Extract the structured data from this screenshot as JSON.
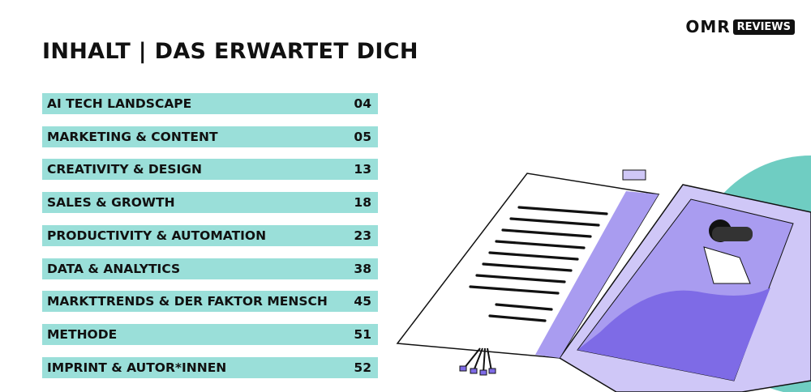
{
  "header": {
    "title": "INHALT | DAS ERWARTET DICH"
  },
  "logo": {
    "brand": "OMR",
    "label": "REVIEWS"
  },
  "toc": {
    "rows": [
      {
        "label": "AI TECH LANDSCAPE",
        "page": "04"
      },
      {
        "label": "MARKETING & CONTENT",
        "page": "05"
      },
      {
        "label": "CREATIVITY & DESIGN",
        "page": "13"
      },
      {
        "label": "SALES & GROWTH",
        "page": "18"
      },
      {
        "label": "PRODUCTIVITY & AUTOMATION",
        "page": "23"
      },
      {
        "label": "DATA & ANALYTICS",
        "page": "38"
      },
      {
        "label": "MARKTTRENDS & DER FAKTOR MENSCH",
        "page": "45"
      },
      {
        "label": "METHODE",
        "page": "51"
      },
      {
        "label": "IMPRINT & AUTOR*INNEN",
        "page": "52"
      }
    ]
  }
}
